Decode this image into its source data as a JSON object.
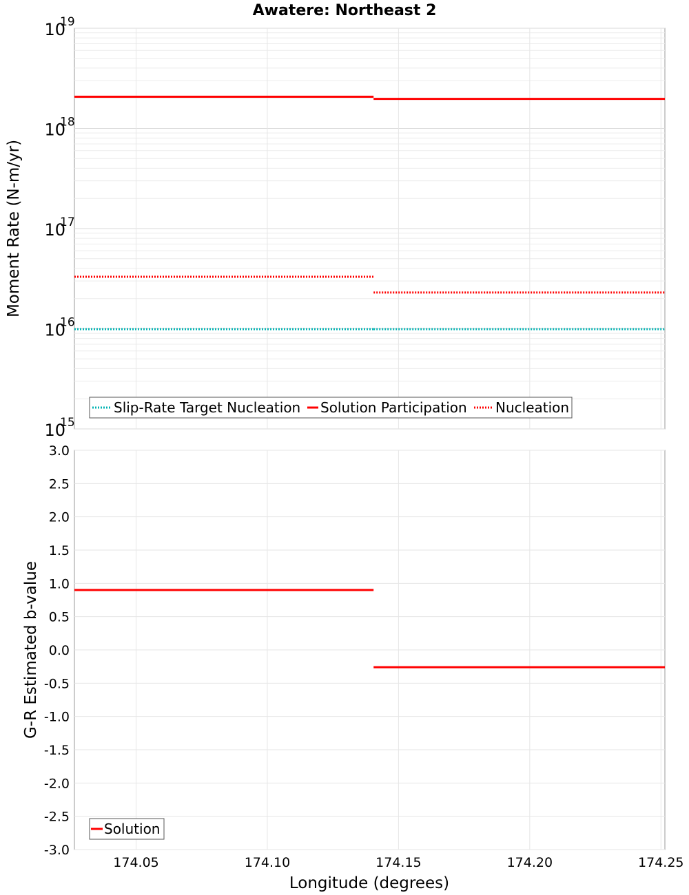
{
  "chart_data": [
    {
      "type": "line",
      "title": "Awatere: Northeast 2",
      "xlabel": "Longitude (degrees)",
      "ylabel": "Moment Rate (N-m/yr)",
      "yscale": "log",
      "xlim": [
        174.0265,
        174.2515
      ],
      "ylim": [
        1000000000000000.0,
        1e+19
      ],
      "y_tick_bases": [
        "10",
        "10",
        "10",
        "10",
        "10"
      ],
      "y_tick_exponents": [
        "15",
        "16",
        "17",
        "18",
        "19"
      ],
      "y_tick_values": [
        1000000000000000.0,
        1e+16,
        1e+17,
        1e+18,
        1e+19
      ],
      "x_gridlines": [
        174.05,
        174.1,
        174.15,
        174.2,
        174.25
      ],
      "grid": true,
      "legend_position": "bottom-left",
      "series": [
        {
          "name": "Slip-Rate Target Nucleation",
          "color": "#00b3b3",
          "style": "dotted",
          "segments": [
            {
              "x": [
                174.0265,
                174.1405
              ],
              "y": 9900000000000000.0
            },
            {
              "x": [
                174.1405,
                174.2515
              ],
              "y": 9900000000000000.0
            }
          ]
        },
        {
          "name": "Solution Participation",
          "color": "#ff0000",
          "style": "solid",
          "segments": [
            {
              "x": [
                174.0265,
                174.1405
              ],
              "y": 2.07e+18
            },
            {
              "x": [
                174.1405,
                174.2515
              ],
              "y": 1.97e+18
            }
          ]
        },
        {
          "name": "Nucleation",
          "color": "#ff0000",
          "style": "dotted",
          "segments": [
            {
              "x": [
                174.0265,
                174.1405
              ],
              "y": 3.3e+16
            },
            {
              "x": [
                174.1405,
                174.2515
              ],
              "y": 2.3e+16
            }
          ]
        }
      ]
    },
    {
      "type": "line",
      "title": "",
      "xlabel": "Longitude (degrees)",
      "ylabel": "G-R Estimated b-value",
      "xlim": [
        174.0265,
        174.2515
      ],
      "ylim": [
        -3.0,
        3.0
      ],
      "y_ticks": [
        3.0,
        2.5,
        2.0,
        1.5,
        1.0,
        0.5,
        0.0,
        -0.5,
        -1.0,
        -1.5,
        -2.0,
        -2.5,
        -3.0
      ],
      "y_tick_labels": [
        "3.0",
        "2.5",
        "2.0",
        "1.5",
        "1.0",
        "0.5",
        "0.0",
        "-0.5",
        "-1.0",
        "-1.5",
        "-2.0",
        "-2.5",
        "-3.0"
      ],
      "x_ticks": [
        174.05,
        174.1,
        174.15,
        174.2,
        174.25
      ],
      "x_tick_labels": [
        "174.05",
        "174.10",
        "174.15",
        "174.20",
        "174.25"
      ],
      "grid": true,
      "legend_position": "bottom-left",
      "series": [
        {
          "name": "Solution",
          "color": "#ff0000",
          "style": "solid",
          "segments": [
            {
              "x": [
                174.0265,
                174.1405
              ],
              "y": 0.9
            },
            {
              "x": [
                174.1405,
                174.2515
              ],
              "y": -0.26
            }
          ]
        }
      ]
    }
  ]
}
